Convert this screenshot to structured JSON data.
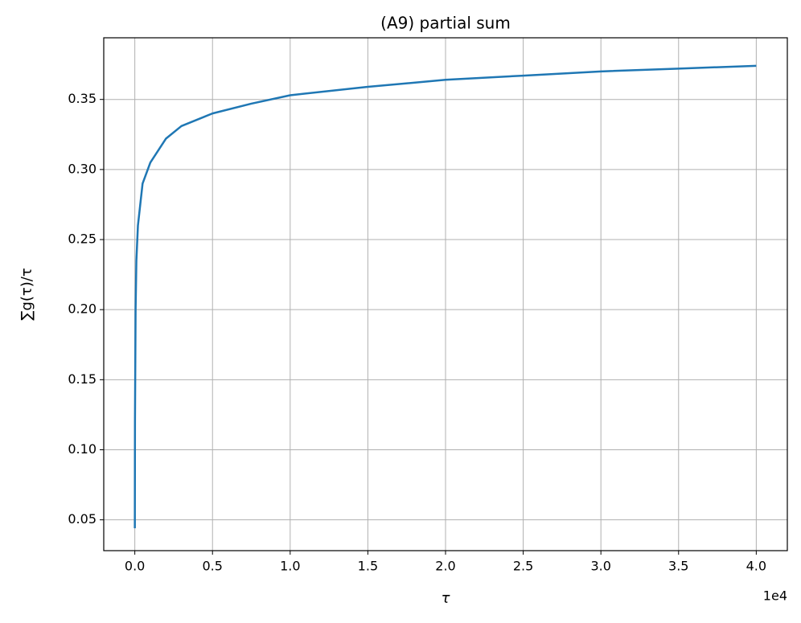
{
  "chart_data": {
    "type": "line",
    "title": "(A9) partial sum",
    "x_label": "τ",
    "y_label": "∑g(τ)/τ",
    "x_offset_label": "1e4",
    "x": [
      1,
      10,
      50,
      100,
      200,
      500,
      1000,
      2000,
      3000,
      5000,
      7500,
      10000,
      15000,
      20000,
      25000,
      30000,
      35000,
      40000
    ],
    "series": [
      {
        "color": "#1f77b4",
        "values": [
          0.044,
          0.12,
          0.2,
          0.235,
          0.26,
          0.29,
          0.305,
          0.322,
          0.331,
          0.34,
          0.347,
          0.353,
          0.359,
          0.364,
          0.367,
          0.37,
          0.372,
          0.374
        ]
      }
    ],
    "xlim": [
      -2000,
      42000
    ],
    "xticks": [
      {
        "value": 0,
        "label": "0.0"
      },
      {
        "value": 5000,
        "label": "0.5"
      },
      {
        "value": 10000,
        "label": "1.0"
      },
      {
        "value": 15000,
        "label": "1.5"
      },
      {
        "value": 20000,
        "label": "2.0"
      },
      {
        "value": 25000,
        "label": "2.5"
      },
      {
        "value": 30000,
        "label": "3.0"
      },
      {
        "value": 35000,
        "label": "3.5"
      },
      {
        "value": 40000,
        "label": "4.0"
      }
    ],
    "ylim": [
      0.028,
      0.394
    ],
    "yticks": [
      0.05,
      {
        "value": 0.1,
        "label": "0.10"
      },
      0.15,
      {
        "value": 0.2,
        "label": "0.20"
      },
      0.25,
      {
        "value": 0.3,
        "label": "0.30"
      },
      0.35
    ],
    "grid": true
  }
}
